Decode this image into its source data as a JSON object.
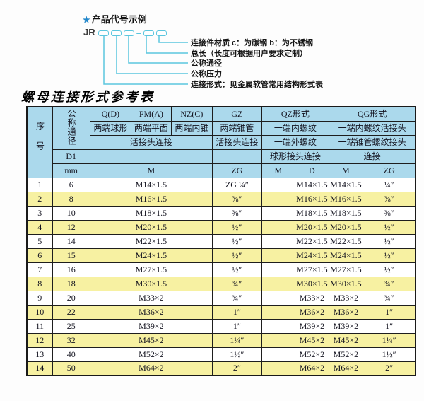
{
  "diagram": {
    "star": "★",
    "title": "产品代号示例",
    "prefix": "JR",
    "labels": [
      "连接件材质  c：为碳钢  b：为不锈钢",
      "总长（长度可根据用户要求定制）",
      "公称通径",
      "公称压力",
      "连接形式：见金属软管常用结构形式表"
    ]
  },
  "table": {
    "title": "螺母连接形式参考表",
    "header": {
      "xuhao": "序号",
      "tongjing": "公称通径",
      "d1": "D1",
      "mm": "mm",
      "qd": "Q(D)",
      "pma": "PM(A)",
      "nzc": "NZ(C)",
      "gz": "GZ",
      "qz": "QZ形式",
      "qg": "QG形式",
      "qd2": "两端球形",
      "pma2": "两端平面",
      "nzc2": "两端内锥",
      "gz2": "两端锥管",
      "qz2": "一端内螺纹",
      "qg2": "一端内螺纹活接头",
      "qpn3": "活接头连接",
      "gz3": "活接头连接",
      "qz3": "一端外螺纹",
      "qg3": "一端锥管螺纹接头",
      "qz4": "球形接头连接",
      "qg4": "连接",
      "m_unit": "M",
      "zg_unit": "ZG",
      "qzm_unit": "M",
      "qzd_unit": "D",
      "qgm_unit": "M",
      "qgzg_unit": "ZG"
    },
    "rows": [
      {
        "no": "1",
        "dn": "6",
        "m": "M14×1.5",
        "zg": "ZG ¼″",
        "qzm": "",
        "qzd": "M14×1.5",
        "qgm": "M14×1.5",
        "qgzg": "¼″"
      },
      {
        "no": "2",
        "dn": "8",
        "m": "M16×1.5",
        "zg": "⅜″",
        "qzm": "",
        "qzd": "M16×1.5",
        "qgm": "M16×1.5",
        "qgzg": "⅜″"
      },
      {
        "no": "3",
        "dn": "10",
        "m": "M18×1.5",
        "zg": "⅜″",
        "qzm": "",
        "qzd": "M18×1.5",
        "qgm": "M18×1.5",
        "qgzg": "⅜″"
      },
      {
        "no": "4",
        "dn": "12",
        "m": "M20×1.5",
        "zg": "½″",
        "qzm": "",
        "qzd": "M20×1.5",
        "qgm": "M20×1.5",
        "qgzg": "½″"
      },
      {
        "no": "5",
        "dn": "14",
        "m": "M22×1.5",
        "zg": "½″",
        "qzm": "",
        "qzd": "M22×1.5",
        "qgm": "M22×1.5",
        "qgzg": "½″"
      },
      {
        "no": "6",
        "dn": "15",
        "m": "M24×1.5",
        "zg": "½″",
        "qzm": "",
        "qzd": "M24×1.5",
        "qgm": "M24×1.5",
        "qgzg": "½″"
      },
      {
        "no": "7",
        "dn": "16",
        "m": "M27×1.5",
        "zg": "½″",
        "qzm": "",
        "qzd": "M27×1.5",
        "qgm": "M27×1.5",
        "qgzg": "½″"
      },
      {
        "no": "8",
        "dn": "18",
        "m": "M30×1.5",
        "zg": "¾″",
        "qzm": "",
        "qzd": "M30×1.5",
        "qgm": "M30×1.5",
        "qgzg": "¾″"
      },
      {
        "no": "9",
        "dn": "20",
        "m": "M33×2",
        "zg": "¾″",
        "qzm": "",
        "qzd": "M33×2",
        "qgm": "M33×2",
        "qgzg": "¾″"
      },
      {
        "no": "10",
        "dn": "22",
        "m": "M36×2",
        "zg": "1″",
        "qzm": "",
        "qzd": "M36×2",
        "qgm": "M36×2",
        "qgzg": "1″"
      },
      {
        "no": "11",
        "dn": "25",
        "m": "M39×2",
        "zg": "1″",
        "qzm": "",
        "qzd": "M39×2",
        "qgm": "M39×2",
        "qgzg": "1″"
      },
      {
        "no": "12",
        "dn": "32",
        "m": "M45×2",
        "zg": "1¼″",
        "qzm": "",
        "qzd": "M45×2",
        "qgm": "M45×2",
        "qgzg": "1¼″"
      },
      {
        "no": "13",
        "dn": "40",
        "m": "M52×2",
        "zg": "1½″",
        "qzm": "",
        "qzd": "M52×2",
        "qgm": "M52×2",
        "qgzg": "1½″"
      },
      {
        "no": "14",
        "dn": "50",
        "m": "M64×2",
        "zg": "2″",
        "qzm": "",
        "qzd": "M64×2",
        "qgm": "M64×2",
        "qgzg": "2″"
      }
    ]
  },
  "colors": {
    "header_bg": "#abd9ec",
    "row_yellow": "#f7f1a2",
    "row_white": "#ffffff",
    "line_cyan": "#5bc6de",
    "star_blue": "#2287cb",
    "border_dark": "#1a1a1a",
    "text_dark": "#141420"
  }
}
